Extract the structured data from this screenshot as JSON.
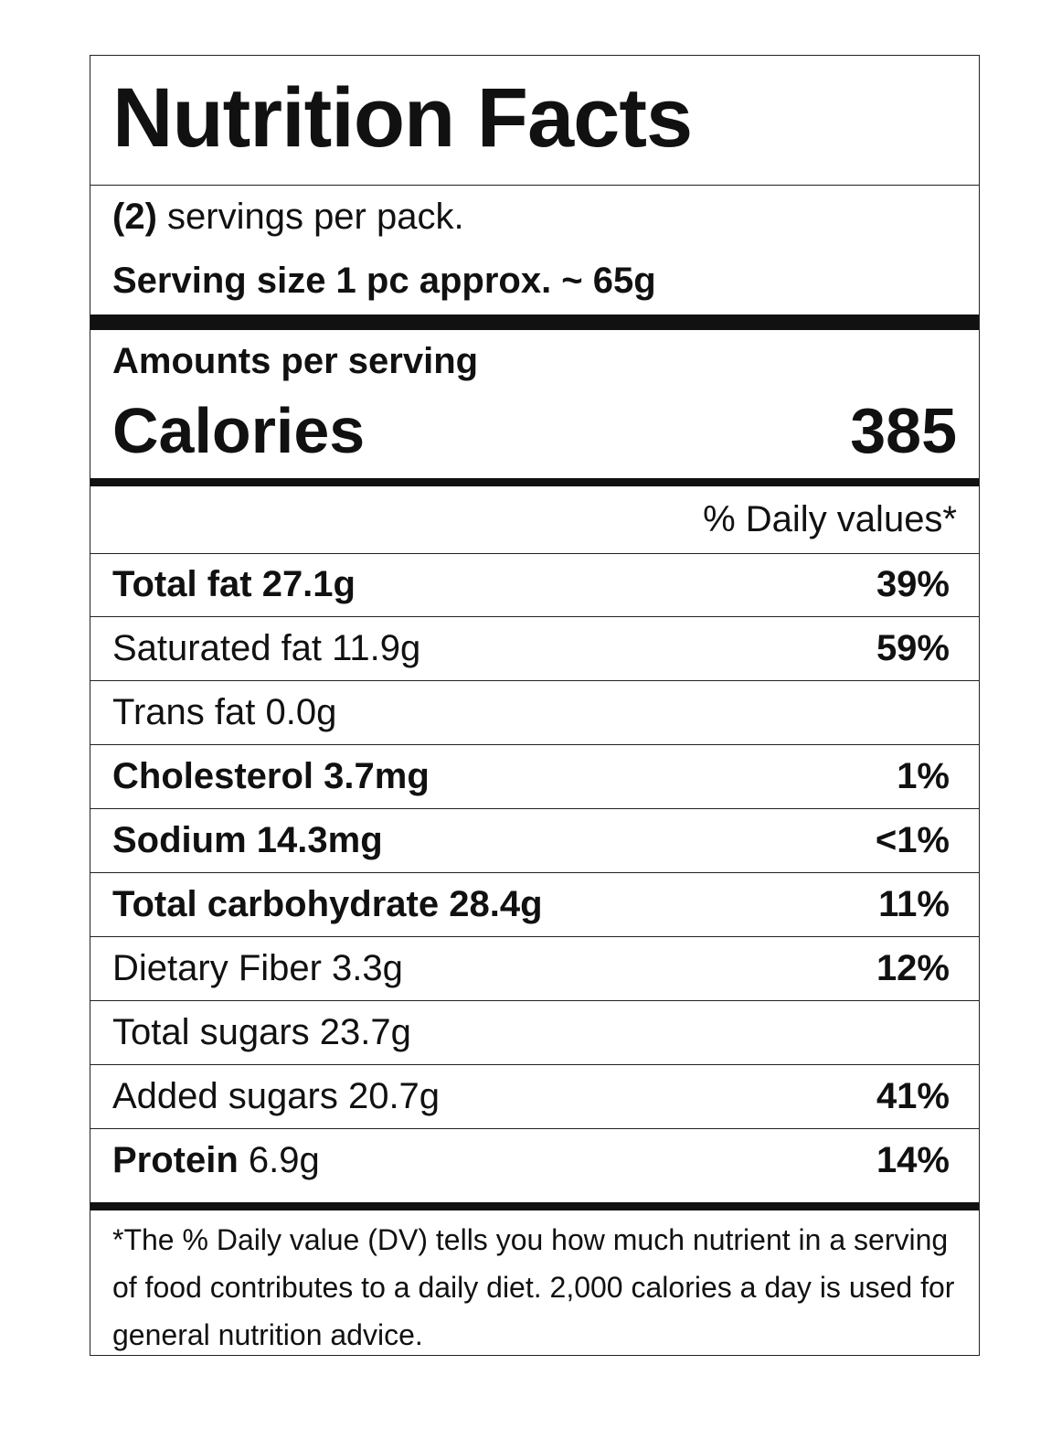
{
  "title": "Nutrition Facts",
  "servings": {
    "count": "(2)",
    "text": " servings per pack.",
    "size": "Serving size 1 pc approx. ~ 65g"
  },
  "amounts_label": "Amounts per serving",
  "calories": {
    "label": "Calories",
    "value": "385"
  },
  "daily_values_header": "% Daily values*",
  "nutrients": [
    {
      "bold": "Total fat 27.1g",
      "regular": "",
      "pct": "39%"
    },
    {
      "bold": "",
      "regular": "Saturated fat 11.9g",
      "pct": "59%"
    },
    {
      "bold": "",
      "regular": "Trans fat 0.0g",
      "pct": ""
    },
    {
      "bold": "Cholesterol 3.7mg",
      "regular": "",
      "pct": "1%"
    },
    {
      "bold": "Sodium 14.3mg",
      "regular": "",
      "pct": "<1%"
    },
    {
      "bold": "Total carbohydrate 28.4g",
      "regular": "",
      "pct": "11%"
    },
    {
      "bold": "",
      "regular": "Dietary Fiber 3.3g",
      "pct": "12%"
    },
    {
      "bold": "",
      "regular": "Total sugars 23.7g",
      "pct": ""
    },
    {
      "bold": "",
      "regular": "Added sugars 20.7g",
      "pct": "41%"
    },
    {
      "bold": "Protein",
      "regular": " 6.9g",
      "pct": "14%"
    }
  ],
  "footnote": "*The % Daily value (DV) tells you how much nutrient in a serving of food contributes to a daily diet. 2,000 calories a day is used for general nutrition advice."
}
